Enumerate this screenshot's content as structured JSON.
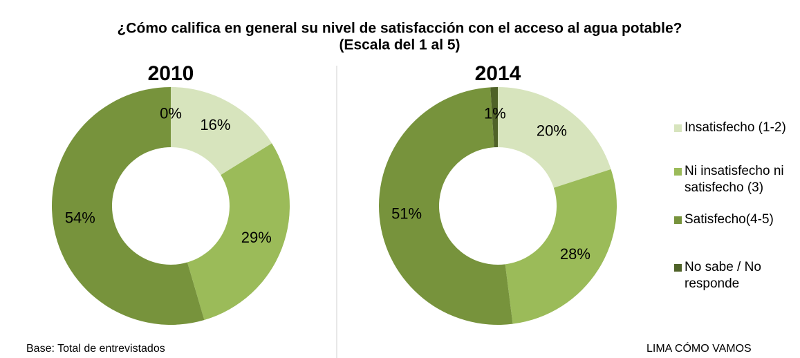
{
  "title": "¿Cómo califica en general su nivel de satisfacción con el acceso al agua potable?",
  "subtitle": "(Escala del 1 al 5)",
  "footnote": "Base: Total de entrevistados",
  "source": "LIMA CÓMO VAMOS",
  "chart_data": [
    {
      "type": "pie",
      "title": "2010",
      "categories": [
        "Insatisfecho (1-2)",
        "Ni insatisfecho ni satisfecho (3)",
        "Satisfecho(4-5)",
        "No sabe / No responde"
      ],
      "values": [
        16,
        29,
        54,
        0
      ],
      "value_labels": [
        "16%",
        "29%",
        "54%",
        "0%"
      ],
      "colors": [
        "#d7e4bd",
        "#9bbb59",
        "#77933c",
        "#4f6228"
      ]
    },
    {
      "type": "pie",
      "title": "2014",
      "categories": [
        "Insatisfecho (1-2)",
        "Ni insatisfecho ni satisfecho (3)",
        "Satisfecho(4-5)",
        "No sabe / No responde"
      ],
      "values": [
        20,
        28,
        51,
        1
      ],
      "value_labels": [
        "20%",
        "28%",
        "51%",
        "1%"
      ],
      "colors": [
        "#d7e4bd",
        "#9bbb59",
        "#77933c",
        "#4f6228"
      ]
    }
  ]
}
